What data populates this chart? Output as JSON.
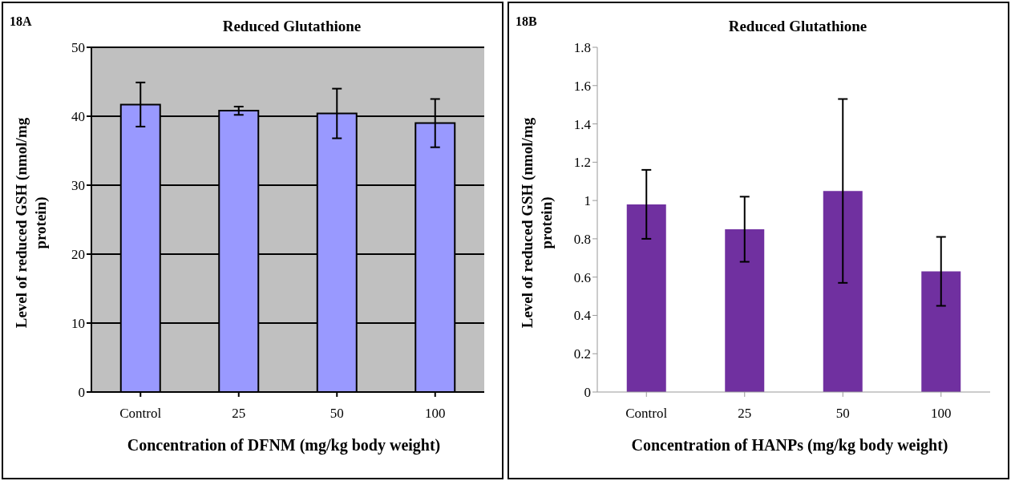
{
  "chart_data": [
    {
      "type": "bar",
      "title": "Reduced Glutathione",
      "annotations": [
        "18A"
      ],
      "xlabel": "Concentration of DFNM (mg/kg body weight)",
      "ylabel": "Level of reduced GSH (nmol/mg protein)",
      "categories": [
        "Control",
        "25",
        "50",
        "100"
      ],
      "values": [
        41.7,
        40.8,
        40.4,
        39.0
      ],
      "errors": [
        3.2,
        0.6,
        3.6,
        3.5
      ],
      "color": "#9999ff",
      "ylim": [
        0,
        50
      ],
      "yticks": [
        0,
        10,
        20,
        30,
        40,
        50
      ],
      "grid": "y"
    },
    {
      "type": "bar",
      "title": "Reduced Glutathione",
      "annotations": [
        "18B"
      ],
      "xlabel": "Concentration of HANPs (mg/kg body weight)",
      "ylabel": "Level of reduced GSH (nmol/mg protein)",
      "categories": [
        "Control",
        "25",
        "50",
        "100"
      ],
      "values": [
        0.98,
        0.85,
        1.05,
        0.63
      ],
      "errors": [
        0.18,
        0.17,
        0.48,
        0.18
      ],
      "color": "#7030a0",
      "ylim": [
        0,
        1.8
      ],
      "yticks": [
        0,
        0.2,
        0.4,
        0.6,
        0.8,
        1,
        1.2,
        1.4,
        1.6,
        1.8
      ],
      "grid": false
    }
  ]
}
